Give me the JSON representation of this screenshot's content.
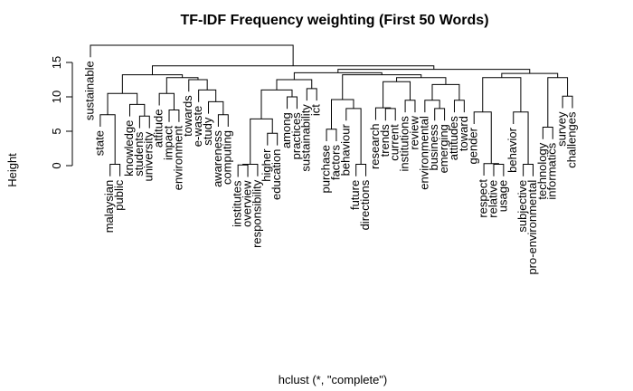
{
  "chart_data": {
    "type": "dendrogram",
    "title": "TF-IDF Frequency weighting (First 50 Words)",
    "ylabel": "Height",
    "xlabel": "hclust (*, \"complete\")",
    "ylim": [
      0,
      17.5
    ],
    "yticks": [
      0,
      5,
      10,
      15
    ],
    "color": "#000000",
    "labels": [
      "sustainable",
      "state",
      "malaysian",
      "public",
      "knowledge",
      "students",
      "university",
      "attitude",
      "impact",
      "environment",
      "towards",
      "e-waste",
      "study",
      "awareness",
      "computing",
      "institutes",
      "overview",
      "responsibility",
      "higher",
      "education",
      "among",
      "practices",
      "sustainability",
      "ict",
      "purchase",
      "factors",
      "behaviour",
      "future",
      "directions",
      "research",
      "trends",
      "current",
      "institutions",
      "review",
      "environmental",
      "business",
      "emerging",
      "attitudes",
      "toward",
      "gender",
      "respect",
      "relative",
      "usage",
      "behavior",
      "subjective",
      "pro-environmental",
      "technology",
      "informatics",
      "survey",
      "challenges"
    ],
    "merge": [
      [
        -3,
        -4
      ],
      [
        -2,
        1
      ],
      [
        -6,
        -7
      ],
      [
        -5,
        3
      ],
      [
        2,
        4
      ],
      [
        -9,
        -10
      ],
      [
        -8,
        6
      ],
      [
        -14,
        -15
      ],
      [
        -13,
        8
      ],
      [
        -12,
        9
      ],
      [
        -11,
        10
      ],
      [
        7,
        11
      ],
      [
        -16,
        -17
      ],
      [
        13,
        -18
      ],
      [
        -19,
        -20
      ],
      [
        14,
        15
      ],
      [
        -21,
        -22
      ],
      [
        16,
        17
      ],
      [
        -23,
        -24
      ],
      [
        18,
        19
      ],
      [
        -25,
        -26
      ],
      [
        -28,
        -29
      ],
      [
        -27,
        22
      ],
      [
        21,
        23
      ],
      [
        -31,
        -32
      ],
      [
        -30,
        25
      ],
      [
        -33,
        -34
      ],
      [
        26,
        27
      ],
      [
        -36,
        -37
      ],
      [
        -35,
        29
      ],
      [
        -38,
        -39
      ],
      [
        30,
        31
      ],
      [
        28,
        32
      ],
      [
        24,
        33
      ],
      [
        20,
        34
      ],
      [
        -42,
        -43
      ],
      [
        -41,
        36
      ],
      [
        -40,
        37
      ],
      [
        -45,
        -46
      ],
      [
        -44,
        39
      ],
      [
        38,
        40
      ],
      [
        -47,
        -48
      ],
      [
        -49,
        -50
      ],
      [
        42,
        43
      ],
      [
        41,
        44
      ],
      [
        5,
        12
      ],
      [
        35,
        45
      ],
      [
        46,
        47
      ],
      [
        -1,
        48
      ]
    ],
    "height": [
      0.2,
      7.4,
      7.2,
      8.9,
      10.5,
      8.1,
      10.5,
      7.4,
      9.3,
      11.0,
      12.5,
      12.8,
      0.1,
      0.2,
      4.7,
      6.8,
      10.0,
      11.0,
      11.2,
      12.5,
      5.3,
      0.2,
      8.3,
      9.6,
      8.3,
      8.4,
      9.5,
      12.2,
      8.3,
      9.5,
      9.5,
      11.8,
      12.8,
      13.2,
      13.5,
      0.2,
      0.3,
      7.8,
      0.2,
      7.8,
      12.8,
      5.6,
      10.1,
      12.8,
      13.4,
      13.2,
      14.0,
      14.5,
      17.5
    ]
  }
}
